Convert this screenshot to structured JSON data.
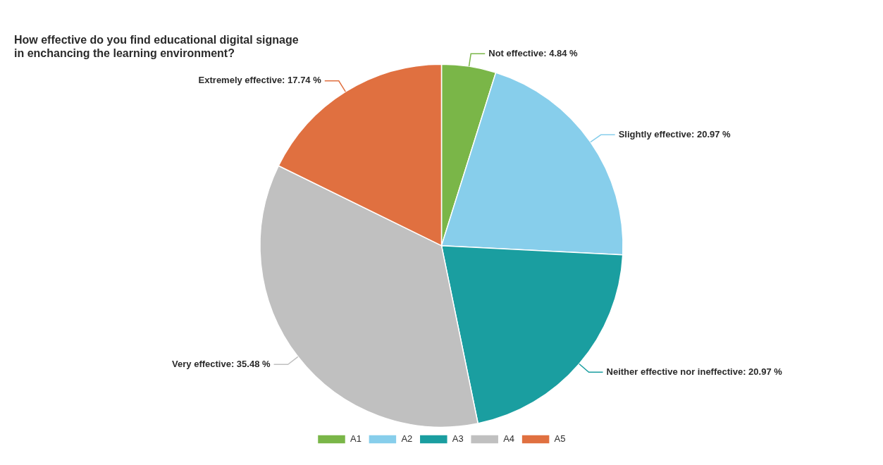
{
  "chart_data": {
    "type": "pie",
    "title": [
      "How effective do you find educational digital signage",
      "in enchancing the learning environment?"
    ],
    "categories": [
      "A1",
      "A2",
      "A3",
      "A4",
      "A5"
    ],
    "values": [
      4.84,
      20.97,
      20.97,
      35.48,
      17.74
    ],
    "value_labels": [
      "Not effective: 4.84 %",
      "Slightly effective: 20.97 %",
      "Neither effective nor ineffective: 20.97 %",
      "Very effective: 35.48 %",
      "Extremely effective: 17.74 %"
    ],
    "colors": [
      "#7ab648",
      "#87ceeb",
      "#1a9ea0",
      "#c0c0c0",
      "#e07040"
    ],
    "data_labels": true,
    "legend": "bottom"
  }
}
